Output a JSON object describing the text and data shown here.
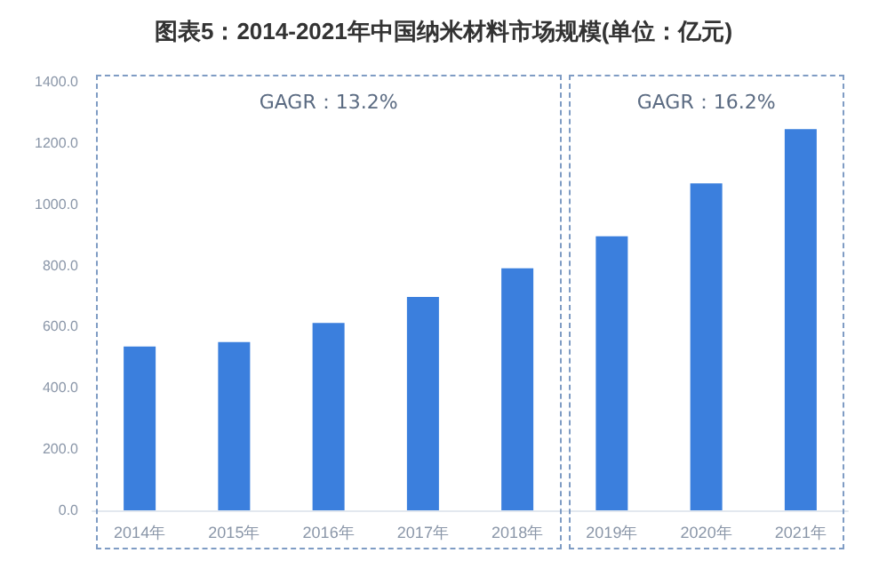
{
  "chart_data": {
    "type": "bar",
    "title": "图表5：2014-2021年中国纳米材料市场规模(单位：亿元)",
    "categories": [
      "2014年",
      "2015年",
      "2016年",
      "2017年",
      "2018年",
      "2019年",
      "2020年",
      "2021年"
    ],
    "values": [
      535,
      550,
      612,
      697,
      791,
      895,
      1068,
      1245
    ],
    "color": "#3b7fdd",
    "ylim": [
      0,
      1400
    ],
    "yticks": [
      {
        "value": 0,
        "label": "0.0"
      },
      {
        "value": 200,
        "label": "200.0"
      },
      {
        "value": 400,
        "label": "400.0"
      },
      {
        "value": 600,
        "label": "600.0"
      },
      {
        "value": 800,
        "label": "800.0"
      },
      {
        "value": 1000,
        "label": "1000.0"
      },
      {
        "value": 1200,
        "label": "1200.0"
      },
      {
        "value": 1400,
        "label": "1400.0"
      }
    ],
    "annotations": [
      "GAGR：13.2%",
      "GAGR：16.2%"
    ],
    "grid": false
  }
}
